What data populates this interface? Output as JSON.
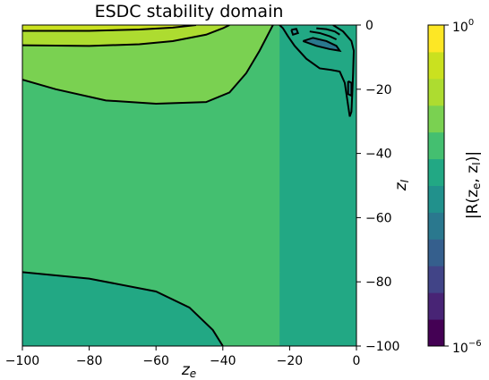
{
  "chart_data": {
    "type": "contour",
    "title": "ESDC stability domain",
    "xlabel": "z_e",
    "ylabel": "z_I",
    "colorbar_label": "|R(z_e, z_I)|",
    "xlim": [
      -100,
      0
    ],
    "ylim": [
      -100,
      0
    ],
    "x_ticks": [
      -100,
      -80,
      -60,
      -40,
      -20,
      0
    ],
    "y_ticks": [
      0,
      -20,
      -40,
      -60,
      -80,
      -100
    ],
    "x_tick_labels": [
      "−100",
      "−80",
      "−60",
      "−40",
      "−20",
      "0"
    ],
    "y_tick_labels": [
      "0",
      "−20",
      "−40",
      "−60",
      "−80",
      "−100"
    ],
    "colorbar": {
      "scale": "log",
      "range": [
        1e-06,
        1
      ],
      "top_label_base": "10",
      "top_label_exp": "0",
      "bottom_label_base": "10",
      "bottom_label_exp": "−6",
      "levels": 12,
      "colors": [
        "#440154",
        "#482475",
        "#414487",
        "#355f8d",
        "#2a788e",
        "#21918c",
        "#22a884",
        "#44bf70",
        "#7ad151",
        "#addc30",
        "#cae11f",
        "#fde725"
      ]
    },
    "regions": [
      {
        "name": "outer",
        "color": "#22a884",
        "points": [
          [
            -100,
            -100
          ],
          [
            0,
            -100
          ],
          [
            0,
            0
          ],
          [
            -100,
            0
          ]
        ]
      },
      {
        "name": "main",
        "color": "#44bf70",
        "points": [
          [
            -100,
            -77
          ],
          [
            -80,
            -79
          ],
          [
            -60,
            -83
          ],
          [
            -50,
            -88
          ],
          [
            -43,
            -95
          ],
          [
            -40,
            -100
          ],
          [
            -23,
            -100
          ],
          [
            -23,
            0
          ],
          [
            -100,
            0
          ]
        ]
      },
      {
        "name": "upper",
        "color": "#7ad151",
        "points": [
          [
            -100,
            -17
          ],
          [
            -90,
            -20
          ],
          [
            -75,
            -23.5
          ],
          [
            -60,
            -24.5
          ],
          [
            -45,
            -24
          ],
          [
            -38,
            -21
          ],
          [
            -33,
            -15
          ],
          [
            -29,
            -8
          ],
          [
            -26,
            -2
          ],
          [
            -25,
            0
          ],
          [
            -100,
            0
          ]
        ]
      },
      {
        "name": "top",
        "color": "#addc30",
        "points": [
          [
            -100,
            -6.3
          ],
          [
            -80,
            -6.5
          ],
          [
            -65,
            -6
          ],
          [
            -55,
            -5
          ],
          [
            -45,
            -3
          ],
          [
            -40,
            -1
          ],
          [
            -38,
            0
          ],
          [
            -100,
            0
          ]
        ]
      },
      {
        "name": "top-strip",
        "color": "#cae11f",
        "points": [
          [
            -100,
            -1.8
          ],
          [
            -80,
            -1.8
          ],
          [
            -65,
            -1.4
          ],
          [
            -55,
            -0.8
          ],
          [
            -48,
            0
          ],
          [
            -100,
            0
          ]
        ]
      },
      {
        "name": "right-lobe",
        "color": "#22a884",
        "points": [
          [
            -23,
            0
          ],
          [
            -22,
            -1
          ],
          [
            -20.5,
            -3.5
          ],
          [
            -18.5,
            -6.5
          ],
          [
            -15,
            -10.5
          ],
          [
            -11,
            -13.5
          ],
          [
            -7.5,
            -14
          ],
          [
            -5,
            -14.5
          ],
          [
            -3.5,
            -18
          ],
          [
            -2.5,
            -25
          ],
          [
            -2,
            -28.5
          ],
          [
            -1.5,
            -27
          ],
          [
            -1.2,
            -20
          ],
          [
            -1,
            -15
          ],
          [
            -0.8,
            -8
          ],
          [
            -1.5,
            -5
          ],
          [
            -4,
            -2
          ],
          [
            -7,
            0
          ]
        ]
      },
      {
        "name": "inner-lobe",
        "color": "#2a788e",
        "points": [
          [
            -16,
            -5
          ],
          [
            -13,
            -4
          ],
          [
            -9,
            -5
          ],
          [
            -6,
            -6.5
          ],
          [
            -5,
            -8
          ],
          [
            -8,
            -7.5
          ],
          [
            -12,
            -6.5
          ]
        ]
      },
      {
        "name": "dot-1",
        "color": "#21918c",
        "points": [
          [
            -19.5,
            -1.5
          ],
          [
            -18,
            -1.2
          ],
          [
            -17.5,
            -2.5
          ],
          [
            -19,
            -3
          ]
        ]
      },
      {
        "name": "dot-2",
        "color": "#21918c",
        "points": [
          [
            -2.5,
            -17.5
          ],
          [
            -1.5,
            -18
          ],
          [
            -1.5,
            -22
          ],
          [
            -2.5,
            -21.5
          ]
        ]
      }
    ],
    "contour_lines": [
      [
        [
          -100,
          -77
        ],
        [
          -80,
          -79
        ],
        [
          -60,
          -83
        ],
        [
          -50,
          -88
        ],
        [
          -43,
          -95
        ],
        [
          -40,
          -100
        ]
      ],
      [
        [
          -100,
          -17
        ],
        [
          -90,
          -20
        ],
        [
          -75,
          -23.5
        ],
        [
          -60,
          -24.5
        ],
        [
          -45,
          -24
        ],
        [
          -38,
          -21
        ],
        [
          -33,
          -15
        ],
        [
          -29,
          -8
        ],
        [
          -26,
          -2
        ],
        [
          -25,
          0
        ]
      ],
      [
        [
          -100,
          -6.3
        ],
        [
          -80,
          -6.5
        ],
        [
          -65,
          -6
        ],
        [
          -55,
          -5
        ],
        [
          -45,
          -3
        ],
        [
          -40,
          -1
        ],
        [
          -38,
          0
        ]
      ],
      [
        [
          -100,
          -1.8
        ],
        [
          -80,
          -1.8
        ],
        [
          -65,
          -1.4
        ],
        [
          -55,
          -0.8
        ],
        [
          -48,
          0
        ]
      ],
      [
        [
          -23,
          0
        ],
        [
          -22,
          -1
        ],
        [
          -20.5,
          -3.5
        ],
        [
          -18.5,
          -6.5
        ],
        [
          -15,
          -10.5
        ],
        [
          -11,
          -13.5
        ],
        [
          -7.5,
          -14
        ],
        [
          -5,
          -14.5
        ],
        [
          -3.5,
          -18
        ],
        [
          -2.5,
          -25
        ],
        [
          -2,
          -28.5
        ],
        [
          -1.5,
          -27
        ],
        [
          -1.2,
          -20
        ],
        [
          -1,
          -15
        ],
        [
          -0.8,
          -8
        ],
        [
          -1.5,
          -5
        ],
        [
          -4,
          -2
        ],
        [
          -7,
          0
        ]
      ],
      [
        [
          -16,
          -5
        ],
        [
          -13,
          -4
        ],
        [
          -9,
          -5
        ],
        [
          -6,
          -6.5
        ],
        [
          -5,
          -8
        ],
        [
          -8,
          -7.5
        ],
        [
          -12,
          -6.5
        ],
        [
          -16,
          -5
        ]
      ],
      [
        [
          -19.5,
          -1.5
        ],
        [
          -18,
          -1.2
        ],
        [
          -17.5,
          -2.5
        ],
        [
          -19,
          -3
        ],
        [
          -19.5,
          -1.5
        ]
      ],
      [
        [
          -2.5,
          -17.5
        ],
        [
          -1.5,
          -18
        ],
        [
          -1.5,
          -22
        ],
        [
          -2.5,
          -21.5
        ],
        [
          -2.5,
          -17.5
        ]
      ],
      [
        [
          -14,
          -2
        ],
        [
          -11,
          -2.5
        ],
        [
          -8,
          -3.5
        ],
        [
          -6,
          -4.5
        ]
      ],
      [
        [
          -12,
          -1
        ],
        [
          -9,
          -1.3
        ],
        [
          -6.5,
          -2
        ],
        [
          -5,
          -3
        ]
      ]
    ]
  }
}
